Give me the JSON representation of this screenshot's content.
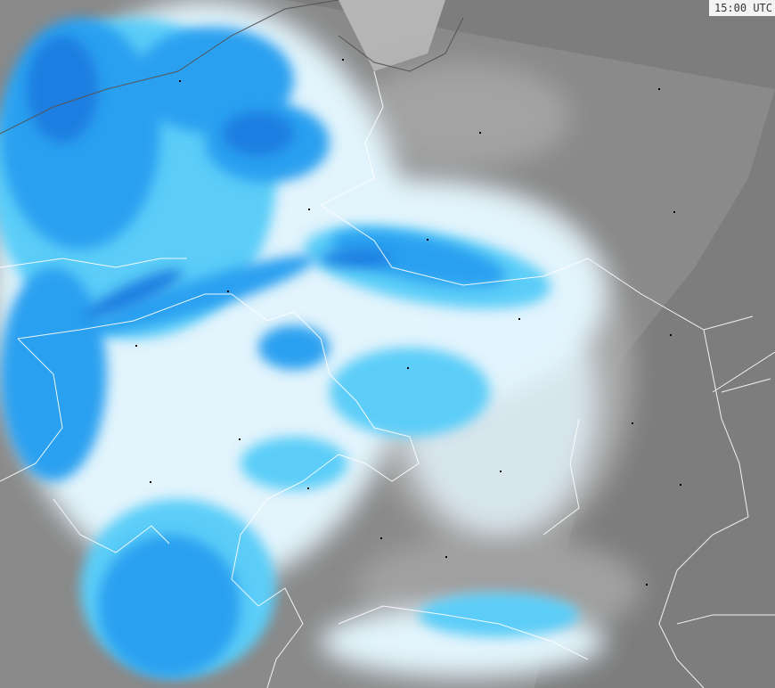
{
  "map": {
    "timestamp": "15:00 UTC",
    "colors": {
      "background_dark": "#7a7a7a",
      "background_mid": "#8f8f8f",
      "land_light": "#b4b4b4",
      "precip_very_light": "#e2f4fc",
      "precip_light": "#5ccdf8",
      "precip_moderate": "#2aa0f0",
      "precip_heavy": "#1e7ee0",
      "precip_intense": "#3030e0",
      "borders": "#ffffff",
      "cities": "#000000"
    },
    "icons": [
      "city-marker"
    ]
  }
}
